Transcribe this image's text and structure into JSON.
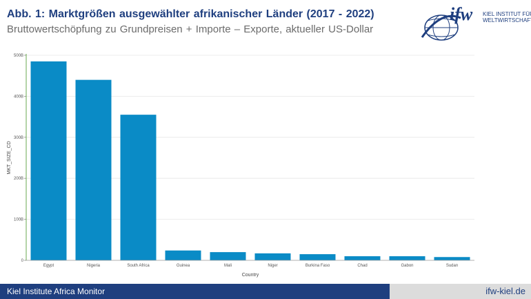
{
  "header": {
    "title": "Abb. 1: Marktgrößen ausgewählter afrikanischer Länder (2017 - 2022)",
    "subtitle": "Bruttowertschöpfung zu Grundpreisen + Importe – Exporte, aktueller US-Dollar"
  },
  "logo": {
    "mark": "ifw",
    "line1": "KIEL INSTITUT FÜR",
    "line2": "WELTWIRTSCHAFT",
    "icon": "globe-icon"
  },
  "footer": {
    "left": "Kiel Institute Africa Monitor",
    "right": "ifw-kiel.de"
  },
  "colors": {
    "bar": "#0a8bc6",
    "brand": "#1f3f7f",
    "axis": "#6aa84f",
    "grid": "#e6e6e6"
  },
  "chart_data": {
    "type": "bar",
    "categories": [
      "Egypt",
      "Nigeria",
      "South Africa",
      "Guinea",
      "Mali",
      "Niger",
      "Burkina Faso",
      "Chad",
      "Gabon",
      "Sudan"
    ],
    "values": [
      485,
      440,
      355,
      24,
      20,
      17,
      15,
      10,
      10,
      8
    ],
    "unit": "B",
    "xlabel": "Country",
    "ylabel": "MKT_SIZE_CD",
    "ylim": [
      0,
      500
    ],
    "yticks": [
      0,
      100,
      200,
      300,
      400,
      500
    ],
    "ytick_labels": [
      "0",
      "100B",
      "200B",
      "300B",
      "400B",
      "500B"
    ],
    "grid": true,
    "legend": "none"
  }
}
